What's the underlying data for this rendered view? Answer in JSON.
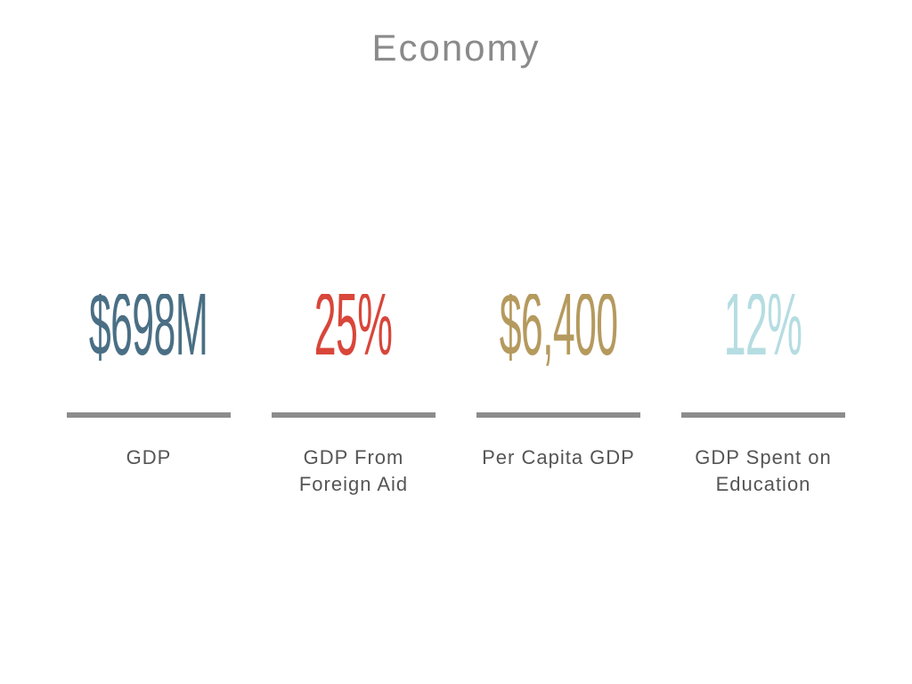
{
  "title": "Economy",
  "stats": [
    {
      "value": "$698M",
      "label": "GDP",
      "color": "#4a6f85"
    },
    {
      "value": "25%",
      "label": "GDP From Foreign Aid",
      "color": "#d9463a"
    },
    {
      "value": "$6,400",
      "label": "Per Capita GDP",
      "color": "#b59a5e"
    },
    {
      "value": "12%",
      "label": "GDP Spent on Education",
      "color": "#b5dde2"
    }
  ],
  "colors": {
    "title": "#8a8a8a",
    "divider": "#8c8c8c",
    "label": "#555555"
  }
}
